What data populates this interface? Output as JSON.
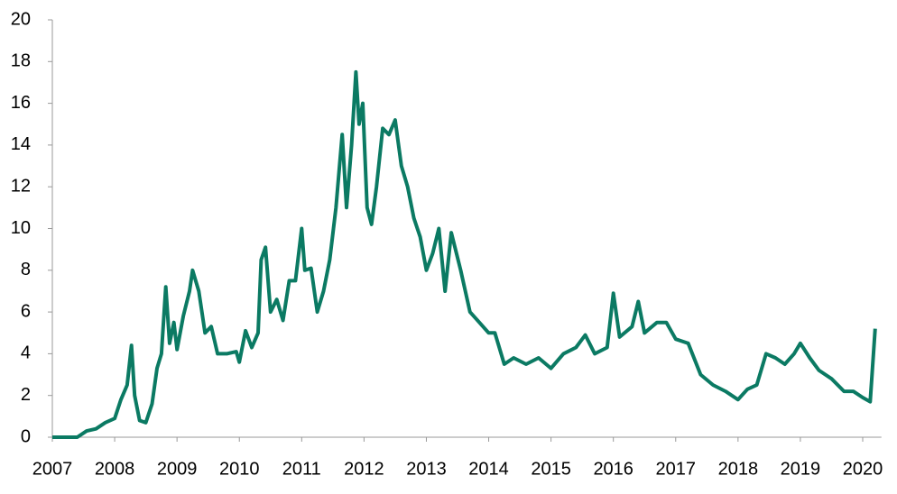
{
  "chart_data": {
    "type": "line",
    "x": [
      2007.0,
      2007.4,
      2007.55,
      2007.7,
      2007.85,
      2008.0,
      2008.1,
      2008.2,
      2008.27,
      2008.32,
      2008.4,
      2008.5,
      2008.6,
      2008.68,
      2008.75,
      2008.82,
      2008.88,
      2008.95,
      2009.0,
      2009.1,
      2009.2,
      2009.25,
      2009.35,
      2009.45,
      2009.55,
      2009.65,
      2009.8,
      2009.95,
      2010.0,
      2010.1,
      2010.2,
      2010.3,
      2010.35,
      2010.42,
      2010.5,
      2010.6,
      2010.7,
      2010.8,
      2010.9,
      2011.0,
      2011.05,
      2011.15,
      2011.25,
      2011.35,
      2011.45,
      2011.55,
      2011.65,
      2011.72,
      2011.8,
      2011.87,
      2011.92,
      2011.98,
      2012.05,
      2012.12,
      2012.2,
      2012.3,
      2012.4,
      2012.5,
      2012.6,
      2012.7,
      2012.8,
      2012.9,
      2013.0,
      2013.1,
      2013.2,
      2013.3,
      2013.4,
      2013.55,
      2013.7,
      2013.85,
      2014.0,
      2014.1,
      2014.25,
      2014.4,
      2014.6,
      2014.8,
      2015.0,
      2015.2,
      2015.4,
      2015.55,
      2015.7,
      2015.9,
      2016.0,
      2016.1,
      2016.3,
      2016.4,
      2016.5,
      2016.7,
      2016.85,
      2017.0,
      2017.2,
      2017.4,
      2017.6,
      2017.8,
      2018.0,
      2018.15,
      2018.3,
      2018.45,
      2018.6,
      2018.75,
      2018.9,
      2019.0,
      2019.15,
      2019.3,
      2019.5,
      2019.7,
      2019.85,
      2020.0,
      2020.12,
      2020.2
    ],
    "series": [
      {
        "color": "#0b7a63",
        "values": [
          0,
          0,
          0.3,
          0.4,
          0.7,
          0.9,
          1.8,
          2.5,
          4.4,
          2.0,
          0.8,
          0.7,
          1.6,
          3.3,
          4.0,
          7.2,
          4.5,
          5.5,
          4.2,
          5.8,
          7.0,
          8.0,
          7.0,
          5.0,
          5.3,
          4.0,
          4.0,
          4.1,
          3.6,
          5.1,
          4.3,
          5.0,
          8.5,
          9.1,
          6.0,
          6.6,
          5.6,
          7.5,
          7.5,
          10.0,
          8.0,
          8.1,
          6.0,
          7.0,
          8.5,
          11.0,
          14.5,
          11.0,
          14.0,
          17.5,
          15.0,
          16.0,
          11.0,
          10.2,
          12.0,
          14.8,
          14.5,
          15.2,
          13.0,
          12.0,
          10.5,
          9.6,
          8.0,
          8.8,
          10.0,
          7.0,
          9.8,
          8.0,
          6.0,
          5.5,
          5.0,
          5.0,
          3.5,
          3.8,
          3.5,
          3.8,
          3.3,
          4.0,
          4.3,
          4.9,
          4.0,
          4.3,
          6.9,
          4.8,
          5.3,
          6.5,
          5.0,
          5.5,
          5.5,
          4.7,
          4.5,
          3.0,
          2.5,
          2.2,
          1.8,
          2.3,
          2.5,
          4.0,
          3.8,
          3.5,
          4.0,
          4.5,
          3.8,
          3.2,
          2.8,
          2.2,
          2.2,
          1.9,
          1.7,
          5.2
        ]
      }
    ],
    "xlim": [
      2007,
      2020.3
    ],
    "xticks": [
      2007,
      2008,
      2009,
      2010,
      2011,
      2012,
      2013,
      2014,
      2015,
      2016,
      2017,
      2018,
      2019,
      2020
    ],
    "ylim": [
      0,
      20
    ],
    "yticks": [
      0,
      2,
      4,
      6,
      8,
      10,
      12,
      14,
      16,
      18,
      20
    ]
  }
}
